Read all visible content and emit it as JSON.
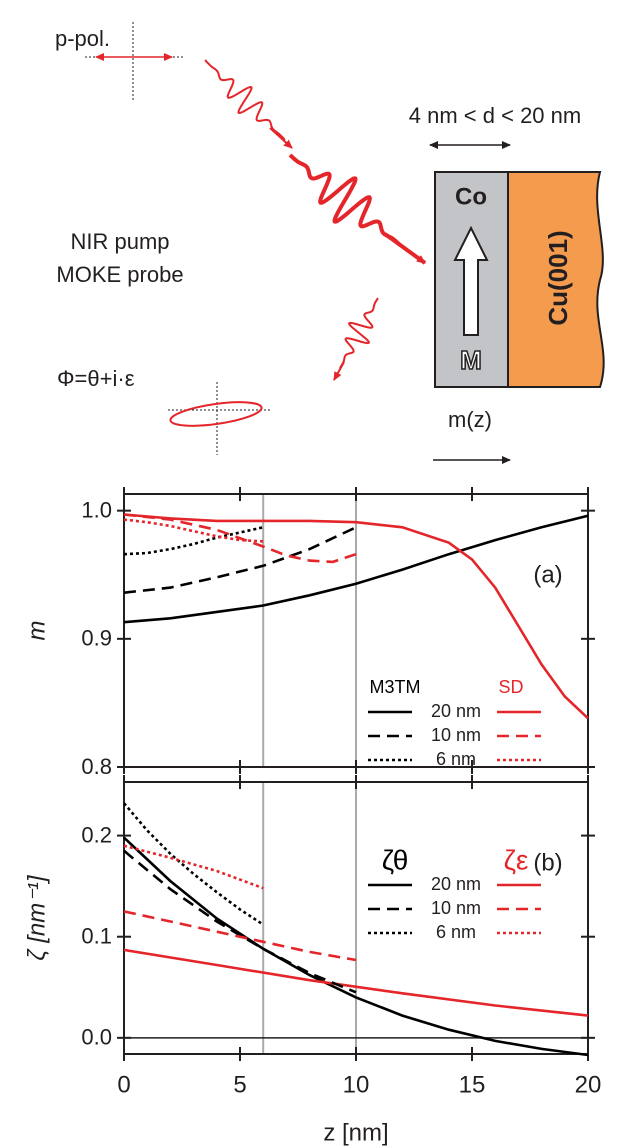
{
  "diagram": {
    "pol_label": "p-pol.",
    "thickness_label": "4 nm < d < 20 nm",
    "pump_label": "NIR pump",
    "probe_label": "MOKE probe",
    "layer_top": "Co",
    "substrate": "Cu(001)",
    "magnetization": "M",
    "phase_label": "Φ=θ+i·ε",
    "profile_label": "m(z)"
  },
  "chart_data": [
    {
      "type": "line",
      "ylabel": "m",
      "annotation": "(a)",
      "xlim": [
        0,
        20
      ],
      "xticks": [
        0,
        5,
        10,
        15,
        20
      ],
      "ylim": [
        0.8,
        1.013
      ],
      "yticks": [
        0.8,
        0.9,
        {
          "value": 1,
          "label": "1.0"
        }
      ],
      "vlines": [
        6,
        10
      ],
      "series": [
        {
          "name": "20 nm",
          "group": "M3TM",
          "color": "#000000",
          "dash": "solid",
          "x": [
            0,
            2,
            4,
            6,
            8,
            10,
            12,
            14,
            16,
            18,
            20
          ],
          "values": [
            0.913,
            0.916,
            0.921,
            0.926,
            0.934,
            0.943,
            0.954,
            0.966,
            0.977,
            0.987,
            0.996
          ]
        },
        {
          "name": "20 nm",
          "group": "SD",
          "color": "#e4262b",
          "dash": "solid",
          "x": [
            0,
            2,
            4,
            6,
            8,
            10,
            12,
            14,
            15,
            16,
            17,
            18,
            19,
            20
          ],
          "values": [
            0.997,
            0.994,
            0.992,
            0.992,
            0.992,
            0.991,
            0.987,
            0.975,
            0.962,
            0.94,
            0.91,
            0.88,
            0.855,
            0.838
          ]
        },
        {
          "name": "10 nm",
          "group": "M3TM",
          "color": "#000000",
          "dash": "dashed",
          "x": [
            0,
            2,
            4,
            6,
            8,
            10
          ],
          "values": [
            0.936,
            0.94,
            0.948,
            0.957,
            0.97,
            0.987
          ]
        },
        {
          "name": "10 nm",
          "group": "SD",
          "color": "#e4262b",
          "dash": "dashed",
          "x": [
            0,
            2,
            4,
            6,
            7,
            8,
            9,
            10
          ],
          "values": [
            0.997,
            0.993,
            0.985,
            0.972,
            0.965,
            0.961,
            0.96,
            0.966
          ]
        },
        {
          "name": "6 nm",
          "group": "M3TM",
          "color": "#000000",
          "dash": "dotted",
          "x": [
            0,
            1,
            2,
            3,
            4,
            5,
            6
          ],
          "values": [
            0.966,
            0.967,
            0.97,
            0.974,
            0.979,
            0.983,
            0.987
          ]
        },
        {
          "name": "6 nm",
          "group": "SD",
          "color": "#e4262b",
          "dash": "dotted",
          "x": [
            0,
            1,
            2,
            3,
            4,
            5,
            6
          ],
          "values": [
            0.993,
            0.991,
            0.988,
            0.984,
            0.98,
            0.977,
            0.976
          ]
        }
      ]
    },
    {
      "type": "line",
      "ylabel": "ζ [nm⁻¹]",
      "xlabel": "z [nm]",
      "annotation": "(b)",
      "xlim": [
        0,
        20
      ],
      "xticks": [
        0,
        5,
        10,
        15,
        20
      ],
      "ylim": [
        -0.016,
        0.253
      ],
      "yticks": [
        {
          "value": 0,
          "label": "0.0"
        },
        0.1,
        0.2
      ],
      "vlines": [
        6,
        10
      ],
      "hlines": [
        0
      ],
      "series": [
        {
          "name": "20 nm",
          "group": "ζθ",
          "color": "#000000",
          "dash": "solid",
          "x": [
            0,
            2,
            4,
            6,
            8,
            10,
            12,
            14,
            16,
            18,
            20
          ],
          "values": [
            0.198,
            0.155,
            0.118,
            0.088,
            0.062,
            0.04,
            0.022,
            0.008,
            -0.003,
            -0.011,
            -0.017
          ]
        },
        {
          "name": "20 nm",
          "group": "ζε",
          "color": "#e4262b",
          "dash": "solid",
          "x": [
            0,
            4,
            8,
            12,
            16,
            20
          ],
          "values": [
            0.087,
            0.072,
            0.057,
            0.044,
            0.032,
            0.022
          ]
        },
        {
          "name": "10 nm",
          "group": "ζθ",
          "color": "#000000",
          "dash": "dashed",
          "x": [
            0,
            2,
            4,
            6,
            8,
            10
          ],
          "values": [
            0.185,
            0.147,
            0.115,
            0.088,
            0.064,
            0.045
          ]
        },
        {
          "name": "10 nm",
          "group": "ζε",
          "color": "#e4262b",
          "dash": "dashed",
          "x": [
            0,
            2,
            4,
            6,
            8,
            10
          ],
          "values": [
            0.125,
            0.115,
            0.105,
            0.095,
            0.085,
            0.077
          ]
        },
        {
          "name": "6 nm",
          "group": "ζθ",
          "color": "#000000",
          "dash": "dotted",
          "x": [
            0,
            1,
            2,
            3,
            4,
            5,
            6
          ],
          "values": [
            0.232,
            0.205,
            0.182,
            0.162,
            0.144,
            0.127,
            0.112
          ]
        },
        {
          "name": "6 nm",
          "group": "ζε",
          "color": "#e4262b",
          "dash": "dotted",
          "x": [
            0,
            2,
            4,
            6
          ],
          "values": [
            0.19,
            0.178,
            0.165,
            0.148
          ]
        }
      ]
    }
  ]
}
